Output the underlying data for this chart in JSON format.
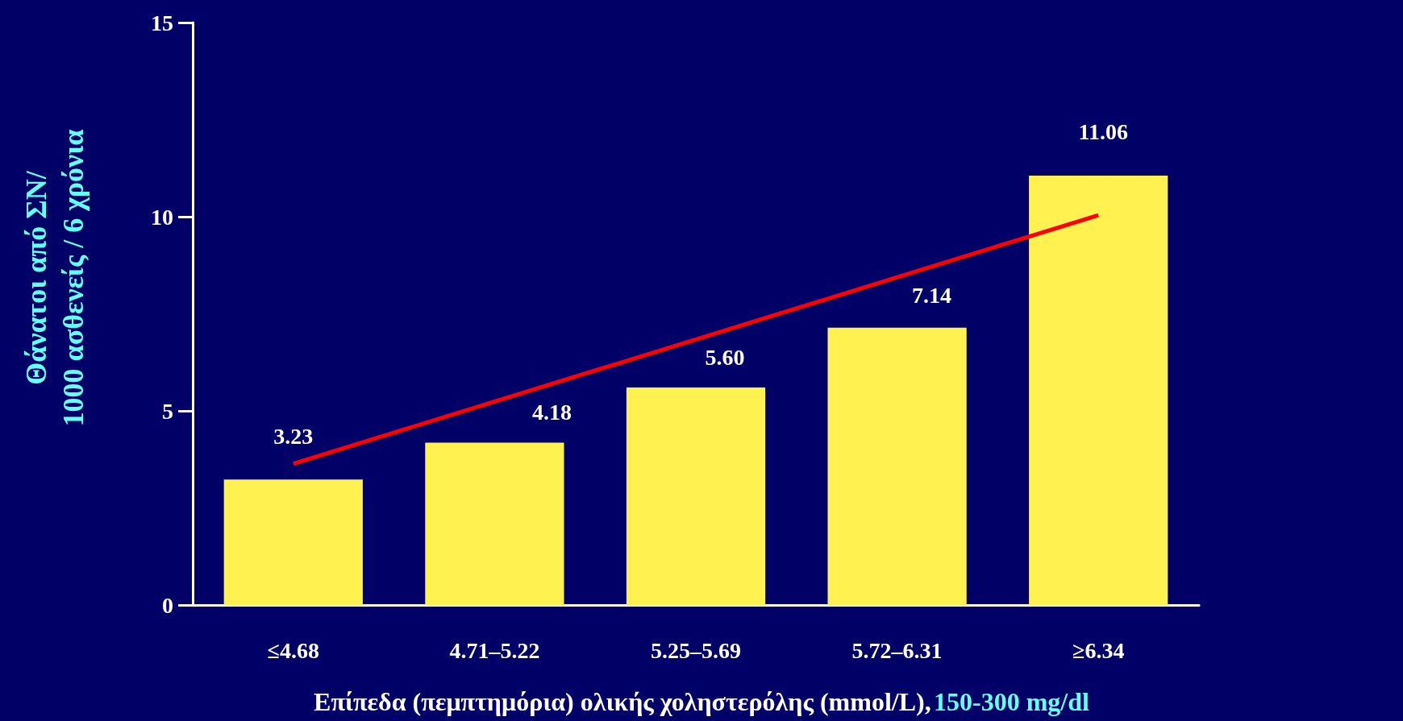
{
  "chart_data": {
    "type": "bar",
    "xlabel": "Επίπεδα (πεμπτημόρια) ολικής χοληστερόλης (mmol/L),",
    "ylabel": "Θάνατοι από ΣΝ/\n1000 ασθενείς / 6 χρόνια",
    "annotations": [
      "150-300 mg/dl"
    ],
    "categories": [
      "≤4.68",
      "4.71–5.22",
      "5.25–5.69",
      "5.72–6.31",
      "≥6.34"
    ],
    "series": [
      {
        "color": "#fff14f",
        "values": [
          3.23,
          4.18,
          5.6,
          7.14,
          11.06
        ],
        "value_labels": [
          "3.23",
          "4.18",
          "5.60",
          "7.14",
          "11.06"
        ]
      },
      {
        "type": "line",
        "color": "#ff0000",
        "values": [
          3.64,
          5.24,
          6.84,
          8.44,
          10.04
        ]
      }
    ],
    "ylim": [
      0,
      15
    ],
    "yticks": [
      0,
      5,
      10,
      15
    ],
    "marker": "none",
    "line_style": "solid"
  }
}
